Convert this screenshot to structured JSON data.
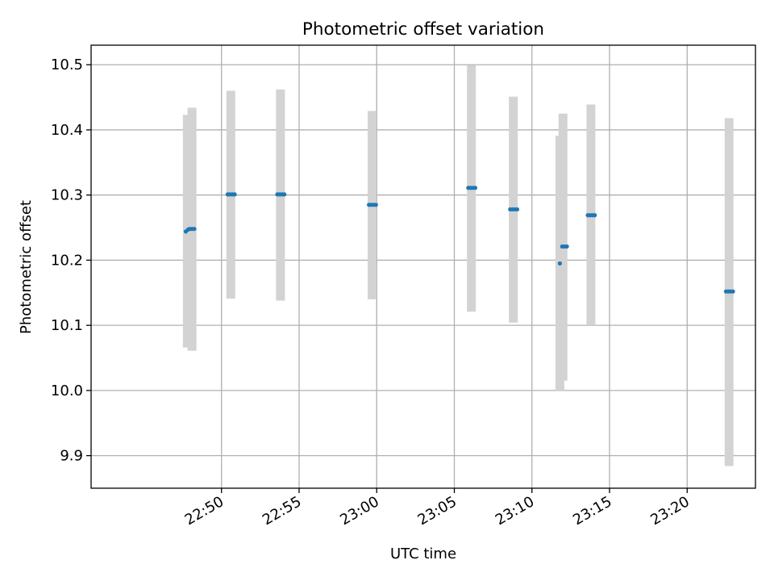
{
  "chart_data": {
    "type": "scatter",
    "title": "Photometric offset variation",
    "xlabel": "UTC time",
    "ylabel": "Photometric offset",
    "xlim_minutes": [
      1361.6,
      1404.4
    ],
    "ylim": [
      9.85,
      10.53
    ],
    "grid": true,
    "x_ticks": [
      {
        "min": 1370,
        "label": "22:50"
      },
      {
        "min": 1375,
        "label": "22:55"
      },
      {
        "min": 1380,
        "label": "23:00"
      },
      {
        "min": 1385,
        "label": "23:05"
      },
      {
        "min": 1390,
        "label": "23:10"
      },
      {
        "min": 1395,
        "label": "23:15"
      },
      {
        "min": 1400,
        "label": "23:20"
      }
    ],
    "y_ticks": [
      {
        "v": 9.9,
        "label": "9.9"
      },
      {
        "v": 10.0,
        "label": "10.0"
      },
      {
        "v": 10.1,
        "label": "10.1"
      },
      {
        "v": 10.2,
        "label": "10.2"
      },
      {
        "v": 10.3,
        "label": "10.3"
      },
      {
        "v": 10.4,
        "label": "10.4"
      },
      {
        "v": 10.5,
        "label": "10.5"
      }
    ],
    "error_bars": [
      {
        "t": 1367.8,
        "lo": 10.066,
        "hi": 10.423
      },
      {
        "t": 1368.1,
        "lo": 10.061,
        "hi": 10.434
      },
      {
        "t": 1370.6,
        "lo": 10.141,
        "hi": 10.46
      },
      {
        "t": 1373.8,
        "lo": 10.138,
        "hi": 10.462
      },
      {
        "t": 1379.7,
        "lo": 10.14,
        "hi": 10.429
      },
      {
        "t": 1386.1,
        "lo": 10.121,
        "hi": 10.499
      },
      {
        "t": 1388.8,
        "lo": 10.104,
        "hi": 10.451
      },
      {
        "t": 1391.8,
        "lo": 10.0,
        "hi": 10.391
      },
      {
        "t": 1392.0,
        "lo": 10.015,
        "hi": 10.425
      },
      {
        "t": 1393.8,
        "lo": 10.1,
        "hi": 10.439
      },
      {
        "t": 1402.7,
        "lo": 9.884,
        "hi": 10.418
      }
    ],
    "series": [
      {
        "name": "offset",
        "color": "#1f77b4",
        "points": [
          {
            "t": 1367.7,
            "v": 10.244
          },
          {
            "t": 1367.85,
            "v": 10.247
          },
          {
            "t": 1367.95,
            "v": 10.248
          },
          {
            "t": 1368.1,
            "v": 10.248
          },
          {
            "t": 1368.25,
            "v": 10.248
          },
          {
            "t": 1370.4,
            "v": 10.301
          },
          {
            "t": 1370.55,
            "v": 10.301
          },
          {
            "t": 1370.7,
            "v": 10.301
          },
          {
            "t": 1370.85,
            "v": 10.301
          },
          {
            "t": 1373.6,
            "v": 10.301
          },
          {
            "t": 1373.75,
            "v": 10.301
          },
          {
            "t": 1373.9,
            "v": 10.301
          },
          {
            "t": 1374.05,
            "v": 10.301
          },
          {
            "t": 1379.5,
            "v": 10.285
          },
          {
            "t": 1379.65,
            "v": 10.285
          },
          {
            "t": 1379.8,
            "v": 10.285
          },
          {
            "t": 1379.95,
            "v": 10.285
          },
          {
            "t": 1385.9,
            "v": 10.311
          },
          {
            "t": 1386.05,
            "v": 10.311
          },
          {
            "t": 1386.2,
            "v": 10.311
          },
          {
            "t": 1386.35,
            "v": 10.311
          },
          {
            "t": 1388.6,
            "v": 10.278
          },
          {
            "t": 1388.75,
            "v": 10.278
          },
          {
            "t": 1388.9,
            "v": 10.278
          },
          {
            "t": 1389.05,
            "v": 10.278
          },
          {
            "t": 1391.8,
            "v": 10.195
          },
          {
            "t": 1391.95,
            "v": 10.221
          },
          {
            "t": 1392.1,
            "v": 10.221
          },
          {
            "t": 1392.25,
            "v": 10.221
          },
          {
            "t": 1393.6,
            "v": 10.269
          },
          {
            "t": 1393.75,
            "v": 10.269
          },
          {
            "t": 1393.9,
            "v": 10.269
          },
          {
            "t": 1394.05,
            "v": 10.269
          },
          {
            "t": 1402.5,
            "v": 10.152
          },
          {
            "t": 1402.65,
            "v": 10.152
          },
          {
            "t": 1402.8,
            "v": 10.152
          },
          {
            "t": 1402.95,
            "v": 10.152
          }
        ]
      }
    ],
    "colors": {
      "error_bar": "#d3d3d3",
      "grid": "#b0b0b0",
      "axis": "#000000"
    }
  }
}
